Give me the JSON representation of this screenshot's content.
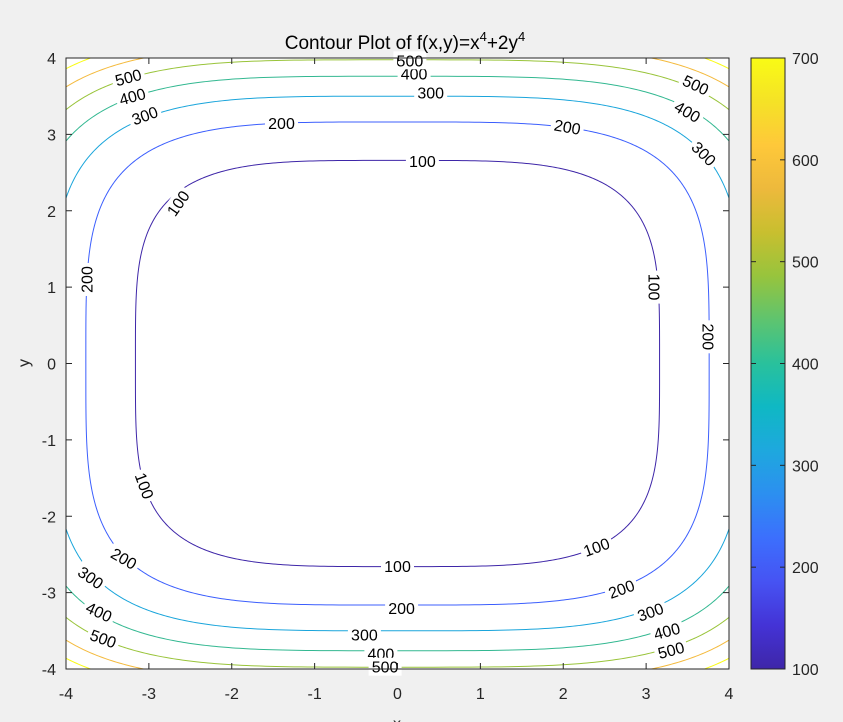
{
  "chart_data": {
    "type": "contour",
    "title_main": "Contour Plot of f(x,y)=x",
    "title_exp1": "4",
    "title_mid": "+2y",
    "title_exp2": "4",
    "xlabel": "x",
    "ylabel": "y",
    "xlim": [
      -4,
      4
    ],
    "ylim": [
      -4,
      4
    ],
    "xticks": [
      "-4",
      "-3",
      "-2",
      "-1",
      "0",
      "1",
      "2",
      "3",
      "4"
    ],
    "yticks": [
      "-4",
      "-3",
      "-2",
      "-1",
      "0",
      "1",
      "2",
      "3",
      "4"
    ],
    "levels": [
      100,
      200,
      300,
      400,
      500,
      600,
      700
    ],
    "level_colors": [
      "#3e26a8",
      "#3c5ffd",
      "#1aa5db",
      "#33b891",
      "#99c43a",
      "#f4ba3d",
      "#f9fb15"
    ],
    "colorbar": {
      "range": [
        100,
        700
      ],
      "ticks": [
        "100",
        "200",
        "300",
        "400",
        "500",
        "600",
        "700"
      ],
      "colormap": [
        "#3e26a8",
        "#4433d6",
        "#4653f3",
        "#3c6ffd",
        "#2c8ff0",
        "#1ea8de",
        "#0fb8c4",
        "#29c19c",
        "#5ec46f",
        "#97c43d",
        "#c8bf2f",
        "#edb93c",
        "#fec83a",
        "#f5e226",
        "#f9fb15"
      ]
    },
    "contour_labels": [
      {
        "text": "100",
        "x": 0.3,
        "y": 2.65,
        "angle": 0
      },
      {
        "text": "100",
        "x": -2.65,
        "y": 2.1,
        "angle": -55
      },
      {
        "text": "100",
        "x": 3.1,
        "y": 1.0,
        "angle": 90
      },
      {
        "text": "100",
        "x": -3.05,
        "y": -1.6,
        "angle": 70
      },
      {
        "text": "100",
        "x": 0.0,
        "y": -2.65,
        "angle": 0
      },
      {
        "text": "100",
        "x": 2.4,
        "y": -2.4,
        "angle": -20
      },
      {
        "text": "200",
        "x": -1.4,
        "y": 3.15,
        "angle": 0
      },
      {
        "text": "200",
        "x": 2.05,
        "y": 3.1,
        "angle": 10
      },
      {
        "text": "200",
        "x": -3.75,
        "y": 1.1,
        "angle": -90
      },
      {
        "text": "200",
        "x": 3.75,
        "y": 0.35,
        "angle": 90
      },
      {
        "text": "200",
        "x": -3.3,
        "y": -2.55,
        "angle": 30
      },
      {
        "text": "200",
        "x": 0.05,
        "y": -3.2,
        "angle": 0
      },
      {
        "text": "200",
        "x": 2.7,
        "y": -2.95,
        "angle": -20
      },
      {
        "text": "300",
        "x": 0.4,
        "y": 3.55,
        "angle": 0
      },
      {
        "text": "300",
        "x": -3.05,
        "y": 3.25,
        "angle": -20
      },
      {
        "text": "300",
        "x": 3.7,
        "y": 2.75,
        "angle": 45
      },
      {
        "text": "300",
        "x": -3.7,
        "y": -2.8,
        "angle": 35
      },
      {
        "text": "300",
        "x": -0.4,
        "y": -3.55,
        "angle": 0
      },
      {
        "text": "300",
        "x": 3.05,
        "y": -3.25,
        "angle": -20
      },
      {
        "text": "400",
        "x": 0.2,
        "y": 3.8,
        "angle": 0
      },
      {
        "text": "400",
        "x": -3.2,
        "y": 3.5,
        "angle": -15
      },
      {
        "text": "400",
        "x": 3.5,
        "y": 3.3,
        "angle": 30
      },
      {
        "text": "400",
        "x": -3.6,
        "y": -3.25,
        "angle": 25
      },
      {
        "text": "400",
        "x": -0.2,
        "y": -3.8,
        "angle": 0
      },
      {
        "text": "400",
        "x": 3.25,
        "y": -3.5,
        "angle": -15
      },
      {
        "text": "500",
        "x": 0.15,
        "y": 3.97,
        "angle": 0
      },
      {
        "text": "500",
        "x": -3.25,
        "y": 3.75,
        "angle": -15
      },
      {
        "text": "500",
        "x": 3.6,
        "y": 3.65,
        "angle": 25
      },
      {
        "text": "500",
        "x": -3.55,
        "y": -3.6,
        "angle": 20
      },
      {
        "text": "500",
        "x": -0.15,
        "y": -3.97,
        "angle": 0
      },
      {
        "text": "500",
        "x": 3.3,
        "y": -3.75,
        "angle": -15
      }
    ]
  }
}
